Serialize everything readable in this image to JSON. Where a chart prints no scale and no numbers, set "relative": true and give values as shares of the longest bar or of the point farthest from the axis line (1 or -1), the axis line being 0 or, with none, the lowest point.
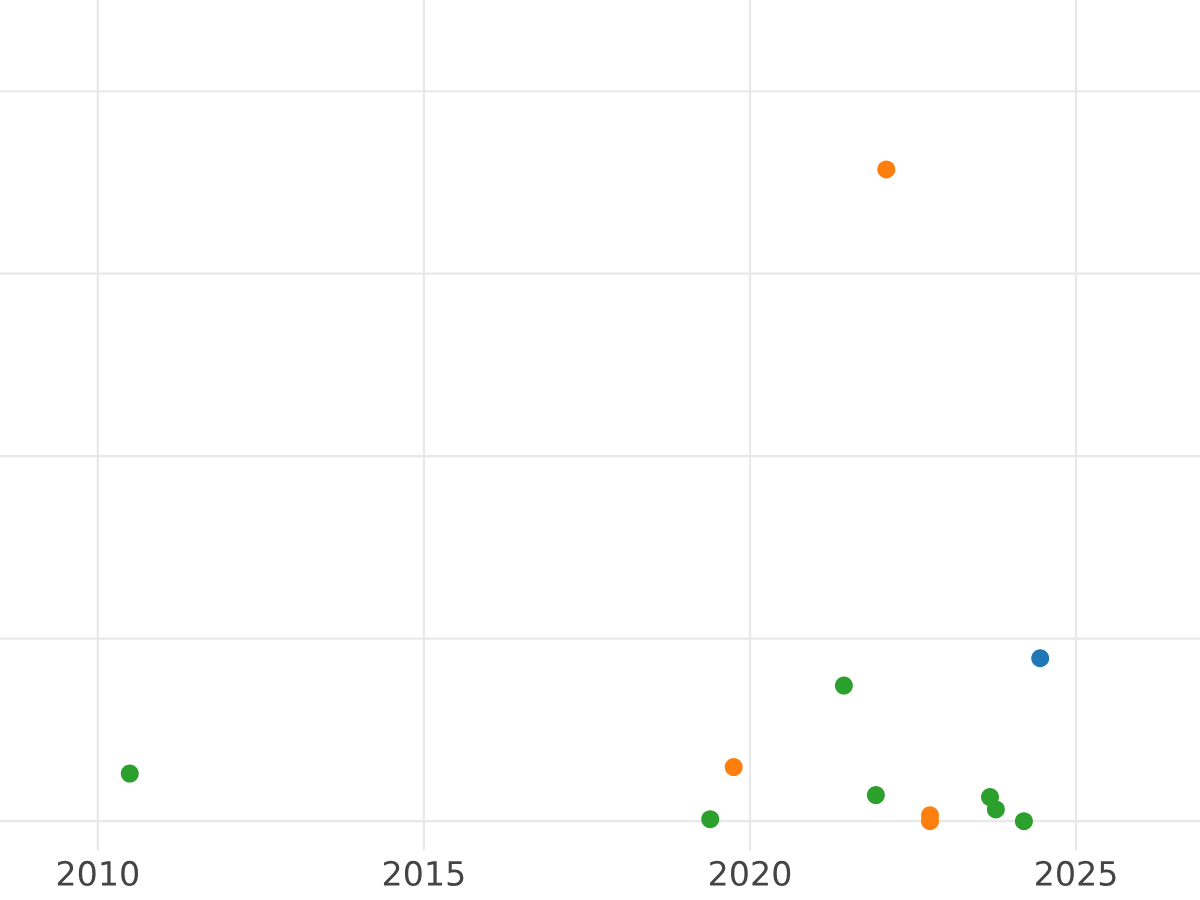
{
  "chart_data": {
    "type": "scatter",
    "relative": true,
    "xlim": [
      2008.5,
      2026.9
    ],
    "xticks": [
      2010,
      2015,
      2020,
      2025
    ],
    "grid": true,
    "tick_labels": "x",
    "marker": "circle",
    "series": [
      {
        "color": "#1f77b4",
        "x": [
          2024.45
        ],
        "values": [
          0.25
        ]
      },
      {
        "color": "#ff7f0e",
        "x": [
          2022.09,
          2019.75,
          2022.76,
          2022.76
        ],
        "values": [
          1.0,
          0.083,
          0.009,
          0
        ]
      },
      {
        "color": "#2ca02c",
        "x": [
          2010.49,
          2019.39,
          2021.44,
          2021.93,
          2023.68,
          2023.77,
          2024.2
        ],
        "values": [
          0.073,
          0.003,
          0.208,
          0.04,
          0.037,
          0.018,
          0
        ]
      }
    ]
  }
}
